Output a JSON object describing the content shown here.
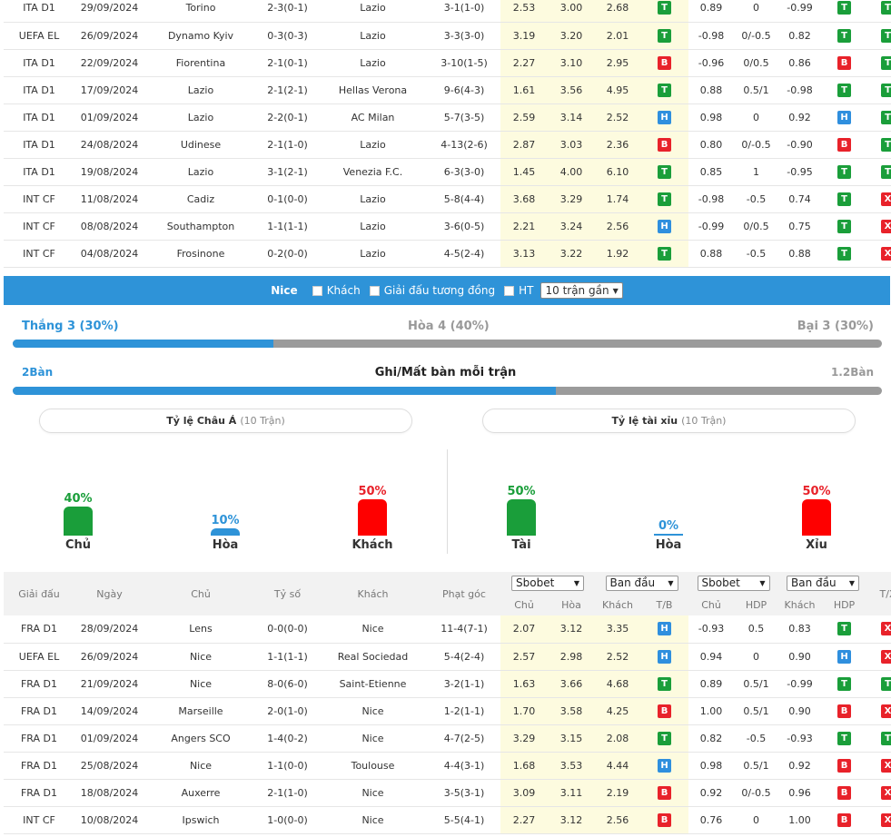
{
  "top_matches": [
    {
      "league": "ITA D1",
      "date": "29/09/2024",
      "home": "Torino",
      "home_hl": false,
      "score": "2-3(0-1)",
      "away": "Lazio",
      "away_hl": true,
      "corners": "3-1(1-0)",
      "o1": "2.53",
      "o2": "3.00",
      "o3": "2.68",
      "r1": "T",
      "h1": "0.89",
      "h2": "0",
      "h3": "-0.99",
      "r2": "T",
      "r3": "T"
    },
    {
      "league": "UEFA EL",
      "date": "26/09/2024",
      "home": "Dynamo Kyiv",
      "home_hl": false,
      "score": "0-3(0-3)",
      "away": "Lazio",
      "away_hl": true,
      "corners": "3-3(3-0)",
      "o1": "3.19",
      "o2": "3.20",
      "o3": "2.01",
      "r1": "T",
      "h1": "-0.98",
      "h2": "0/-0.5",
      "h3": "0.82",
      "r2": "T",
      "r3": "T"
    },
    {
      "league": "ITA D1",
      "date": "22/09/2024",
      "home": "Fiorentina",
      "home_hl": false,
      "score": "2-1(0-1)",
      "away": "Lazio",
      "away_hl": true,
      "corners": "3-10(1-5)",
      "o1": "2.27",
      "o2": "3.10",
      "o3": "2.95",
      "r1": "B",
      "h1": "-0.96",
      "h2": "0/0.5",
      "h3": "0.86",
      "r2": "B",
      "r3": "T"
    },
    {
      "league": "ITA D1",
      "date": "17/09/2024",
      "home": "Lazio",
      "home_hl": true,
      "score": "2-1(2-1)",
      "away": "Hellas Verona",
      "away_hl": false,
      "corners": "9-6(4-3)",
      "o1": "1.61",
      "o2": "3.56",
      "o3": "4.95",
      "r1": "T",
      "h1": "0.88",
      "h2": "0.5/1",
      "h3": "-0.98",
      "r2": "T",
      "r3": "T"
    },
    {
      "league": "ITA D1",
      "date": "01/09/2024",
      "home": "Lazio",
      "home_hl": true,
      "score": "2-2(0-1)",
      "away": "AC Milan",
      "away_hl": false,
      "corners": "5-7(3-5)",
      "o1": "2.59",
      "o2": "3.14",
      "o3": "2.52",
      "r1": "H",
      "h1": "0.98",
      "h2": "0",
      "h3": "0.92",
      "r2": "H",
      "r3": "T"
    },
    {
      "league": "ITA D1",
      "date": "24/08/2024",
      "home": "Udinese",
      "home_hl": false,
      "score": "2-1(1-0)",
      "away": "Lazio",
      "away_hl": true,
      "corners": "4-13(2-6)",
      "o1": "2.87",
      "o2": "3.03",
      "o3": "2.36",
      "r1": "B",
      "h1": "0.80",
      "h2": "0/-0.5",
      "h3": "-0.90",
      "r2": "B",
      "r3": "T"
    },
    {
      "league": "ITA D1",
      "date": "19/08/2024",
      "home": "Lazio",
      "home_hl": true,
      "score": "3-1(2-1)",
      "away": "Venezia F.C.",
      "away_hl": false,
      "corners": "6-3(3-0)",
      "o1": "1.45",
      "o2": "4.00",
      "o3": "6.10",
      "r1": "T",
      "h1": "0.85",
      "h2": "1",
      "h3": "-0.95",
      "r2": "T",
      "r3": "T"
    },
    {
      "league": "INT CF",
      "date": "11/08/2024",
      "home": "Cadiz",
      "home_hl": false,
      "score": "0-1(0-0)",
      "away": "Lazio",
      "away_hl": true,
      "corners": "5-8(4-4)",
      "o1": "3.68",
      "o2": "3.29",
      "o3": "1.74",
      "r1": "T",
      "h1": "-0.98",
      "h2": "-0.5",
      "h3": "0.74",
      "r2": "T",
      "r3": "X"
    },
    {
      "league": "INT CF",
      "date": "08/08/2024",
      "home": "Southampton",
      "home_hl": false,
      "score": "1-1(1-1)",
      "away": "Lazio",
      "away_hl": true,
      "corners": "3-6(0-5)",
      "o1": "2.21",
      "o2": "3.24",
      "o3": "2.56",
      "r1": "H",
      "h1": "-0.99",
      "h2": "0/0.5",
      "h3": "0.75",
      "r2": "T",
      "r3": "X"
    },
    {
      "league": "INT CF",
      "date": "04/08/2024",
      "home": "Frosinone",
      "home_hl": false,
      "score": "0-2(0-0)",
      "away": "Lazio",
      "away_hl": true,
      "corners": "4-5(2-4)",
      "o1": "3.13",
      "o2": "3.22",
      "o3": "1.92",
      "r1": "T",
      "h1": "0.88",
      "h2": "-0.5",
      "h3": "0.88",
      "r2": "T",
      "r3": "X"
    }
  ],
  "filter_bar": {
    "team": "Nice",
    "opt_away": "Khách",
    "opt_same_league": "Giải đấu tương đồng",
    "opt_ht": "HT",
    "match_count": "10 trận gần"
  },
  "summary": {
    "win_label": "Thắng 3 (30%)",
    "draw_label": "Hòa 4 (40%)",
    "loss_label": "Bại 3 (30%)",
    "win_pct": 30,
    "goals_for": "2Bàn",
    "goals_title": "Ghi/Mất bàn mỗi trận",
    "goals_against": "1.2Bàn",
    "goals_for_value": 2,
    "goals_against_value": 1.2
  },
  "asian": {
    "title": "Tỷ lệ Châu Á",
    "count": "(10 Trận)",
    "home_pct": "40%",
    "home_value": 40,
    "home_label": "Chủ",
    "draw_pct": "10%",
    "draw_value": 10,
    "draw_label": "Hòa",
    "away_pct": "50%",
    "away_value": 50,
    "away_label": "Khách"
  },
  "overunder": {
    "title": "Tỷ lệ tài xỉu",
    "count": "(10 Trận)",
    "over_pct": "50%",
    "over_value": 50,
    "over_label": "Tài",
    "draw_pct": "0%",
    "draw_value": 0,
    "draw_label": "Hòa",
    "under_pct": "50%",
    "under_value": 50,
    "under_label": "Xỉu"
  },
  "lower_header": {
    "league": "Giải đấu",
    "date": "Ngày",
    "home": "Chủ",
    "score": "Tỷ số",
    "away": "Khách",
    "corners": "Phạt góc",
    "bookmaker1": "Sbobet",
    "type1": "Ban đầu",
    "bookmaker2": "Sbobet",
    "type2": "Ban đầu",
    "c_home": "Chủ",
    "c_draw": "Hòa",
    "c_away": "Khách",
    "c_tb": "T/B",
    "c_home2": "Chủ",
    "c_hdp": "HDP",
    "c_away2": "Khách",
    "c_hdp2": "HDP",
    "c_tx": "T/X"
  },
  "bottom_matches": [
    {
      "league": "FRA D1",
      "date": "28/09/2024",
      "home": "Lens",
      "home_hl": false,
      "score": "0-0(0-0)",
      "away": "Nice",
      "away_hl": true,
      "corners": "11-4(7-1)",
      "o1": "2.07",
      "o2": "3.12",
      "o3": "3.35",
      "r1": "H",
      "h1": "-0.93",
      "h2": "0.5",
      "h3": "0.83",
      "r2": "T",
      "r3": "X"
    },
    {
      "league": "UEFA EL",
      "date": "26/09/2024",
      "home": "Nice",
      "home_hl": true,
      "score": "1-1(1-1)",
      "away": "Real Sociedad",
      "away_hl": false,
      "corners": "5-4(2-4)",
      "o1": "2.57",
      "o2": "2.98",
      "o3": "2.52",
      "r1": "H",
      "h1": "0.94",
      "h2": "0",
      "h3": "0.90",
      "r2": "H",
      "r3": "X"
    },
    {
      "league": "FRA D1",
      "date": "21/09/2024",
      "home": "Nice",
      "home_hl": true,
      "score": "8-0(6-0)",
      "away": "Saint-Etienne",
      "away_hl": false,
      "corners": "3-2(1-1)",
      "o1": "1.63",
      "o2": "3.66",
      "o3": "4.68",
      "r1": "T",
      "h1": "0.89",
      "h2": "0.5/1",
      "h3": "-0.99",
      "r2": "T",
      "r3": "T"
    },
    {
      "league": "FRA D1",
      "date": "14/09/2024",
      "home": "Marseille",
      "home_hl": false,
      "score": "2-0(1-0)",
      "away": "Nice",
      "away_hl": true,
      "corners": "1-2(1-1)",
      "o1": "1.70",
      "o2": "3.58",
      "o3": "4.25",
      "r1": "B",
      "h1": "1.00",
      "h2": "0.5/1",
      "h3": "0.90",
      "r2": "B",
      "r3": "X"
    },
    {
      "league": "FRA D1",
      "date": "01/09/2024",
      "home": "Angers SCO",
      "home_hl": false,
      "score": "1-4(0-2)",
      "away": "Nice",
      "away_hl": true,
      "corners": "4-7(2-5)",
      "o1": "3.29",
      "o2": "3.15",
      "o3": "2.08",
      "r1": "T",
      "h1": "0.82",
      "h2": "-0.5",
      "h3": "-0.93",
      "r2": "T",
      "r3": "T"
    },
    {
      "league": "FRA D1",
      "date": "25/08/2024",
      "home": "Nice",
      "home_hl": true,
      "score": "1-1(0-0)",
      "away": "Toulouse",
      "away_hl": false,
      "corners": "4-4(3-1)",
      "o1": "1.68",
      "o2": "3.53",
      "o3": "4.44",
      "r1": "H",
      "h1": "0.98",
      "h2": "0.5/1",
      "h3": "0.92",
      "r2": "B",
      "r3": "X"
    },
    {
      "league": "FRA D1",
      "date": "18/08/2024",
      "home": "Auxerre",
      "home_hl": false,
      "score": "2-1(1-0)",
      "away": "Nice",
      "away_hl": true,
      "corners": "3-5(3-1)",
      "o1": "3.09",
      "o2": "3.11",
      "o3": "2.19",
      "r1": "B",
      "h1": "0.92",
      "h2": "0/-0.5",
      "h3": "0.96",
      "r2": "B",
      "r3": "X"
    },
    {
      "league": "INT CF",
      "date": "10/08/2024",
      "home": "Ipswich",
      "home_hl": false,
      "score": "1-0(0-0)",
      "away": "Nice",
      "away_hl": true,
      "corners": "5-5(4-1)",
      "o1": "2.27",
      "o2": "3.12",
      "o3": "2.56",
      "r1": "B",
      "h1": "0.76",
      "h2": "0",
      "h3": "1.00",
      "r2": "B",
      "r3": "X"
    }
  ]
}
